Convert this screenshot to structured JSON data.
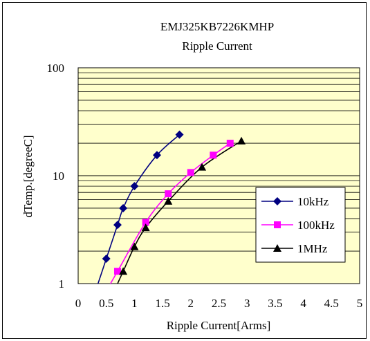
{
  "chart_data": {
    "type": "line",
    "title": "EMJ325KB7226KMHP",
    "subtitle": "Ripple Current",
    "xlabel": "Ripple Current[Arms]",
    "ylabel": "dTemp.[degreeC]",
    "xlim": [
      0,
      5
    ],
    "ylim": [
      1,
      100
    ],
    "yscale": "log",
    "x_ticks": [
      "0",
      "0.5",
      "1",
      "1.5",
      "2",
      "2.5",
      "3",
      "3.5",
      "4",
      "4.5",
      "5"
    ],
    "y_ticks": [
      "1",
      "10",
      "100"
    ],
    "grid": true,
    "legend_position": "center-right",
    "plot_background": "#FFFFCC",
    "series": [
      {
        "name": "10kHz",
        "color": "#000080",
        "marker": "diamond",
        "points": [
          [
            0.5,
            1.7
          ],
          [
            0.7,
            3.5
          ],
          [
            0.8,
            5.0
          ],
          [
            1.0,
            8.0
          ],
          [
            1.4,
            15.5
          ],
          [
            1.8,
            24.0
          ]
        ]
      },
      {
        "name": "100kHz",
        "color": "#FF00FF",
        "marker": "square",
        "points": [
          [
            0.7,
            1.3
          ],
          [
            1.2,
            3.7
          ],
          [
            1.6,
            6.8
          ],
          [
            2.0,
            10.7
          ],
          [
            2.4,
            15.5
          ],
          [
            2.7,
            20.0
          ]
        ]
      },
      {
        "name": "1MHz",
        "color": "#000000",
        "marker": "triangle",
        "points": [
          [
            0.8,
            1.3
          ],
          [
            1.0,
            2.2
          ],
          [
            1.2,
            3.3
          ],
          [
            1.6,
            5.8
          ],
          [
            2.2,
            12.0
          ],
          [
            2.9,
            21.0
          ]
        ]
      }
    ]
  }
}
